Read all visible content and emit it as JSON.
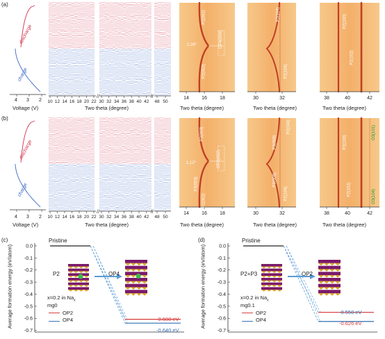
{
  "labels": {
    "a": "(a)",
    "b": "(b)",
    "c": "(c)",
    "d": "(d)"
  },
  "ab": {
    "discharge": "discharge",
    "charge": "charge",
    "voltage_title": "Voltage (V)",
    "voltage_ticks": [
      "4",
      "3",
      "2"
    ],
    "two_theta_title": "Two theta (degree)",
    "two_theta_ticks_left": [
      "10",
      "12",
      "14",
      "16",
      "18",
      "20",
      "22"
    ],
    "two_theta_ticks_right": [
      "30",
      "32",
      "34",
      "36",
      "38",
      "40",
      "42",
      "48",
      "50"
    ],
    "heat_title": "Two theta (degree)",
    "heat1_ticks": [
      "14",
      "16",
      "18"
    ],
    "heat2_ticks": [
      "30",
      "32"
    ],
    "heat3_ticks": [
      "38",
      "40",
      "42"
    ]
  },
  "a_ann": {
    "p2_002": "P2(002)",
    "op4_004": "OP4(004)",
    "angle": "2.26°",
    "p2_104": "P2(104)",
    "p2_004": "P2(004)",
    "p2_100": "P2(100)",
    "p2_102": "P2(102)"
  },
  "b_ann": {
    "p3_003": "P3(003)",
    "p2_002": "P2(002)",
    "angle": "1.12°",
    "op2_002": "OP2(002)",
    "p3_006": "P3(006)",
    "p2_104": "P2(104)",
    "p2_004": "P2(004)",
    "p3_104": "P3(104)",
    "p2_100": "P2(100)",
    "p2_102": "P2(102)",
    "o3_101": "O3(101)",
    "o3_104": "O3(104)"
  },
  "c": {
    "ylabel": "Average formation energy (eV/atom)",
    "yticks": [
      "0.0",
      "-0.1",
      "-0.2",
      "-0.3",
      "-0.4",
      "-0.5",
      "-0.6",
      "-0.7"
    ],
    "pristine": "Pristine",
    "left_phase": "P2",
    "right_phase": "OP4",
    "composition": "x=0.2 in Na",
    "composition_sub": "x",
    "sample": "mg0",
    "legend": [
      "OP2",
      "OP4"
    ],
    "e1": "-0.608 eV",
    "e2": "-0.640 eV"
  },
  "d": {
    "ylabel": "Average formation energy (eV/atom)",
    "yticks": [
      "0.0",
      "-0.1",
      "-0.2",
      "-0.3",
      "-0.4",
      "-0.5",
      "-0.6",
      "-0.7"
    ],
    "pristine": "Pristine",
    "left_phase": "P2+P3",
    "right_phase": "OP2",
    "composition": "x=0.2 in Na",
    "composition_sub": "x",
    "sample": "mg0.1",
    "legend": [
      "OP2",
      "OP4"
    ],
    "e1": "-0.550 eV",
    "e2": "-0.626 eV"
  },
  "chart_data": [
    {
      "type": "line",
      "panel": "c",
      "ylabel": "Average formation energy (eV/atom)",
      "ylim": [
        -0.7,
        0.0
      ],
      "series": [
        {
          "name": "OP2",
          "values": [
            0.0,
            -0.608
          ]
        },
        {
          "name": "OP4",
          "values": [
            0.0,
            -0.64
          ]
        }
      ]
    },
    {
      "type": "line",
      "panel": "d",
      "ylabel": "Average formation energy (eV/atom)",
      "ylim": [
        -0.7,
        0.0
      ],
      "series": [
        {
          "name": "OP2",
          "values": [
            0.0,
            -0.55
          ]
        },
        {
          "name": "OP4",
          "values": [
            0.0,
            -0.626
          ]
        }
      ]
    }
  ],
  "colors": {
    "discharge": "#d0334a",
    "charge": "#3a66c4",
    "heat_bg": "#f4b56a",
    "heat_line": "#b8331c",
    "op2": "#d63a3a",
    "op4": "#2f6fb5",
    "accent": "#5a9bd5",
    "green": "#1a9a2a"
  }
}
